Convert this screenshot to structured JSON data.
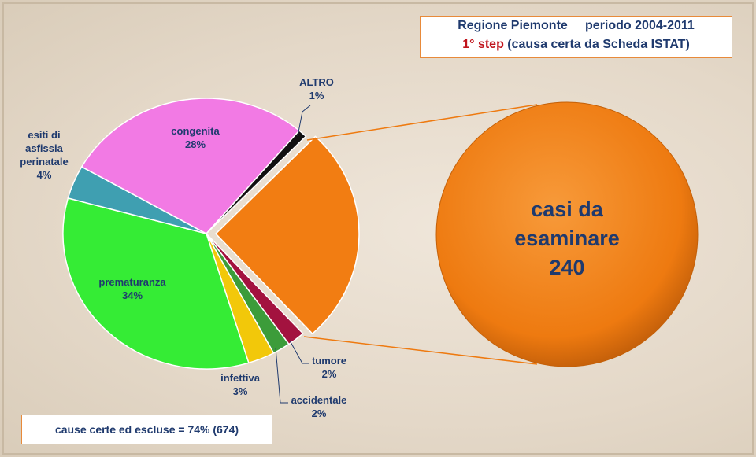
{
  "chart_data": {
    "type": "pie",
    "title": "Regione Piemonte",
    "subtitle": "periodo 2004-2011",
    "step": "1° step",
    "step_note": "(causa certa da Scheda ISTAT)",
    "categories": [
      null,
      "tumore",
      "accidentale",
      "infettiva",
      "prematuranza",
      "esiti di asfissia perinatale",
      "congenita",
      "ALTRO"
    ],
    "values": [
      26,
      2,
      2,
      3,
      34,
      4,
      28,
      1
    ],
    "value_labels": [
      null,
      "2%",
      "2%",
      "3%",
      "34%",
      "4%",
      "28%",
      "1%"
    ],
    "colors": [
      "#f27d12",
      "#a3123f",
      "#3c9c3a",
      "#f2c80a",
      "#35ec35",
      "#3f9fb1",
      "#f27ae4",
      "#111111"
    ],
    "zoom_label": "casi da esaminare",
    "zoom_value": 240,
    "annotation": "cause certe ed escluse = 74% (674)"
  }
}
